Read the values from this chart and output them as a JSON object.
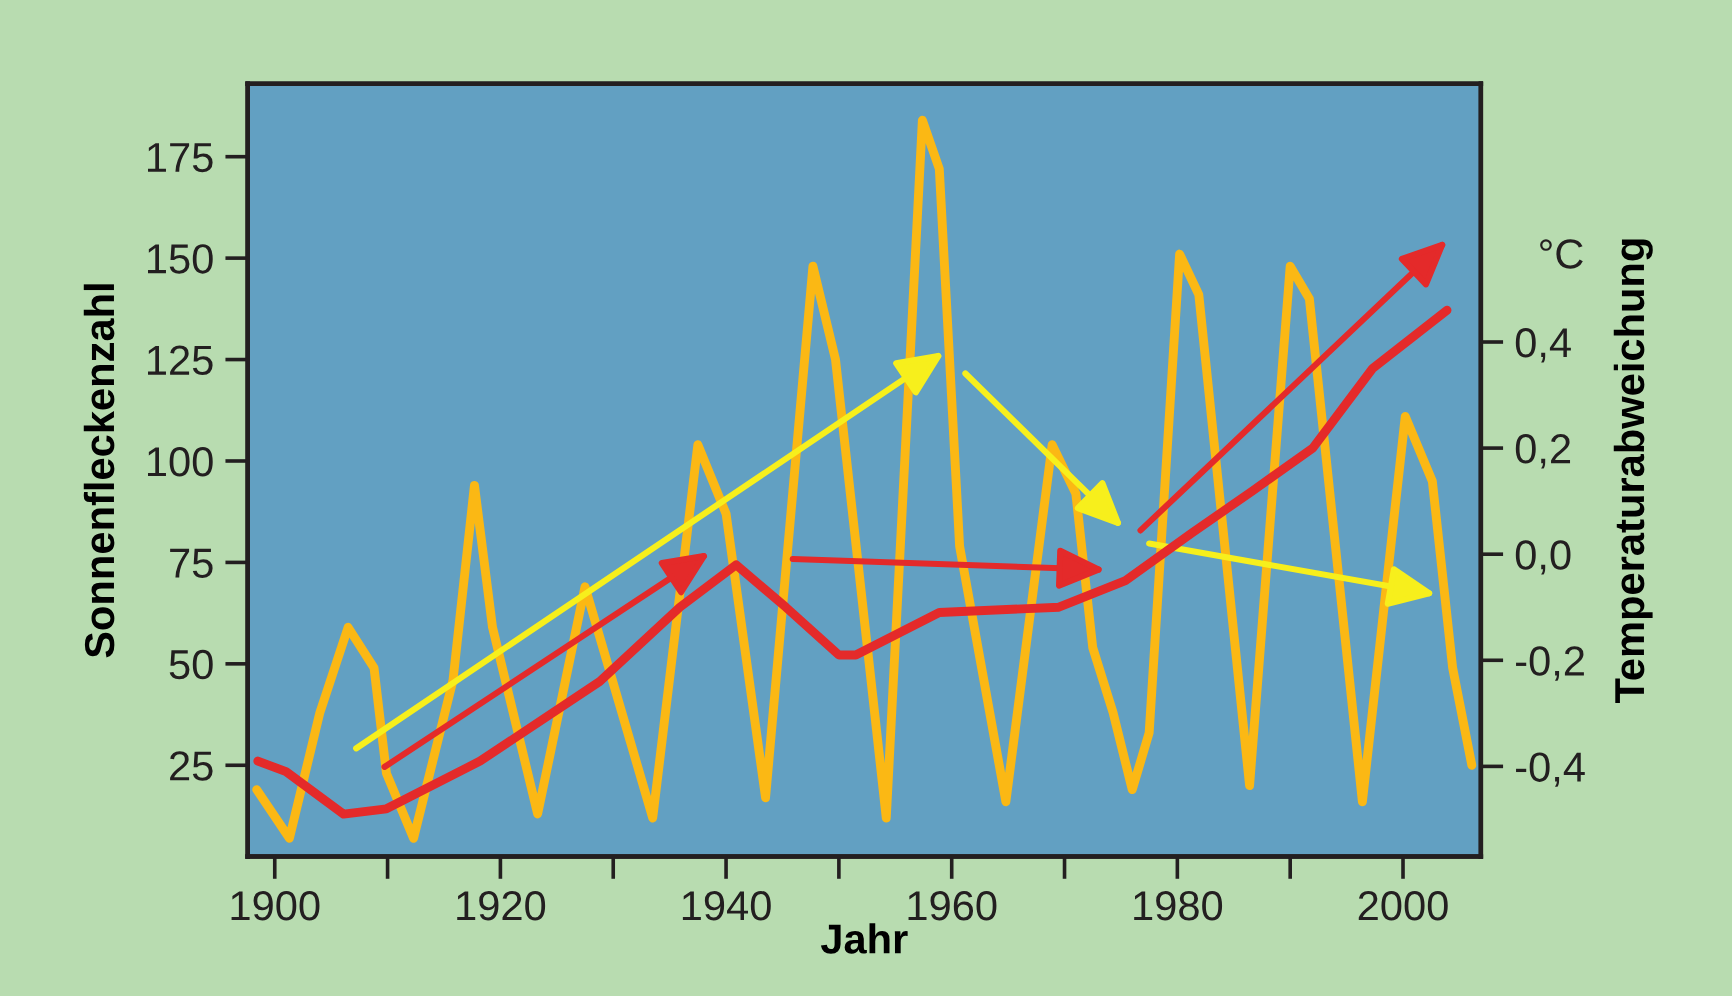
{
  "chart_data": {
    "type": "line",
    "xlabel": "Jahr",
    "ylabel": "Sonnenfleckenzahl",
    "y2label": "Temperaturabweichung",
    "annotations": [
      "°C"
    ],
    "xlim": [
      1897.6,
      2006.9
    ],
    "xticks": [
      {
        "value": 1900,
        "label": "1900"
      },
      {
        "value": 1910,
        "label": null
      },
      {
        "value": 1920,
        "label": "1920"
      },
      {
        "value": 1930,
        "label": null
      },
      {
        "value": 1940,
        "label": "1940"
      },
      {
        "value": 1950,
        "label": null
      },
      {
        "value": 1960,
        "label": "1960"
      },
      {
        "value": 1970,
        "label": null
      },
      {
        "value": 1980,
        "label": "1980"
      },
      {
        "value": 1990,
        "label": null
      },
      {
        "value": 2000,
        "label": "2000"
      }
    ],
    "ylim": [
      2.5,
      193
    ],
    "yticks": [
      25,
      50,
      75,
      100,
      125,
      150,
      175
    ],
    "y2lim": [
      -0.57,
      0.887
    ],
    "y2ticks": [
      {
        "value": -0.4,
        "label": "-0,4"
      },
      {
        "value": -0.2,
        "label": "-0,2"
      },
      {
        "value": 0.0,
        "label": "0,0"
      },
      {
        "value": 0.2,
        "label": "0,2"
      },
      {
        "value": 0.4,
        "label": "0,4"
      }
    ],
    "grid": false,
    "legend": false,
    "marker": "none",
    "line_style": "solid",
    "series": [
      {
        "color": "#fbb814",
        "x": [
          1898.4,
          1901.3,
          1904.0,
          1906.5,
          1908.8,
          1909.9,
          1912.3,
          1915.8,
          1917.7,
          1919.3,
          1923.3,
          1927.5,
          1933.5,
          1937.5,
          1940.0,
          1943.5,
          1947.7,
          1949.7,
          1954.2,
          1957.4,
          1958.9,
          1960.7,
          1964.8,
          1968.9,
          1971.0,
          1972.5,
          1974.3,
          1976.0,
          1977.5,
          1980.2,
          1981.9,
          1986.4,
          1990.0,
          1991.7,
          1996.4,
          2000.2,
          2002.6,
          2004.4,
          2006.1
        ],
        "values": [
          19,
          7,
          38,
          59,
          49,
          23,
          7,
          46,
          94,
          59,
          13,
          69,
          12,
          104,
          87,
          17,
          148,
          125,
          12,
          184,
          172,
          79,
          16,
          104,
          92,
          54,
          38,
          19,
          33,
          151,
          141,
          20,
          148,
          140,
          16,
          111,
          95,
          49,
          25
        ]
      },
      {
        "axis": "y2",
        "color": "#e42a2a",
        "x": [
          1898.5,
          1901.0,
          1906.1,
          1909.9,
          1918.2,
          1928.8,
          1935.9,
          1940.9,
          1945.3,
          1950.0,
          1951.5,
          1958.9,
          1969.5,
          1975.4,
          1981.3,
          1986.7,
          1992.0,
          1997.3,
          2003.9
        ],
        "values": [
          -0.39,
          -0.41,
          -0.49,
          -0.48,
          -0.39,
          -0.24,
          -0.1,
          -0.02,
          -0.1,
          -0.19,
          -0.19,
          -0.11,
          -0.1,
          -0.05,
          0.04,
          0.12,
          0.2,
          0.35,
          0.46
        ]
      }
    ]
  }
}
